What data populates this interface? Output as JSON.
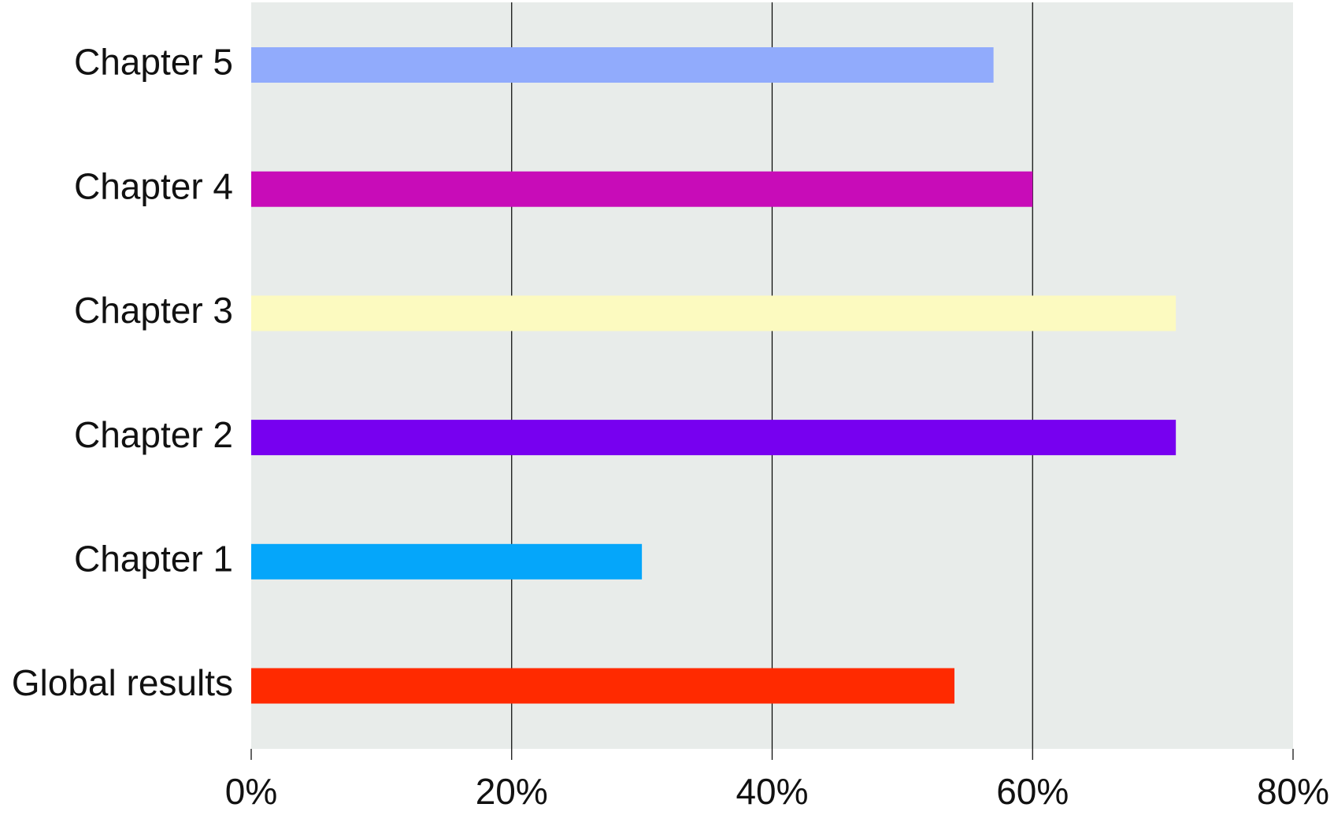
{
  "chart_data": {
    "type": "barh",
    "categories": [
      "Global results",
      "Chapter 1",
      "Chapter 2",
      "Chapter 3",
      "Chapter 4",
      "Chapter 5"
    ],
    "values": [
      54,
      30,
      71,
      71,
      60,
      57
    ],
    "colors": [
      "#ff2a00",
      "#05a6fa",
      "#7700f0",
      "#fcfac0",
      "#c80cb8",
      "#91abfc"
    ],
    "xlim": [
      0,
      80
    ],
    "xticks": [
      {
        "value": 0,
        "label": "0%"
      },
      {
        "value": 20,
        "label": "20%"
      },
      {
        "value": 40,
        "label": "40%"
      },
      {
        "value": 60,
        "label": "60%"
      },
      {
        "value": 80,
        "label": "80%"
      }
    ],
    "grid": true
  }
}
